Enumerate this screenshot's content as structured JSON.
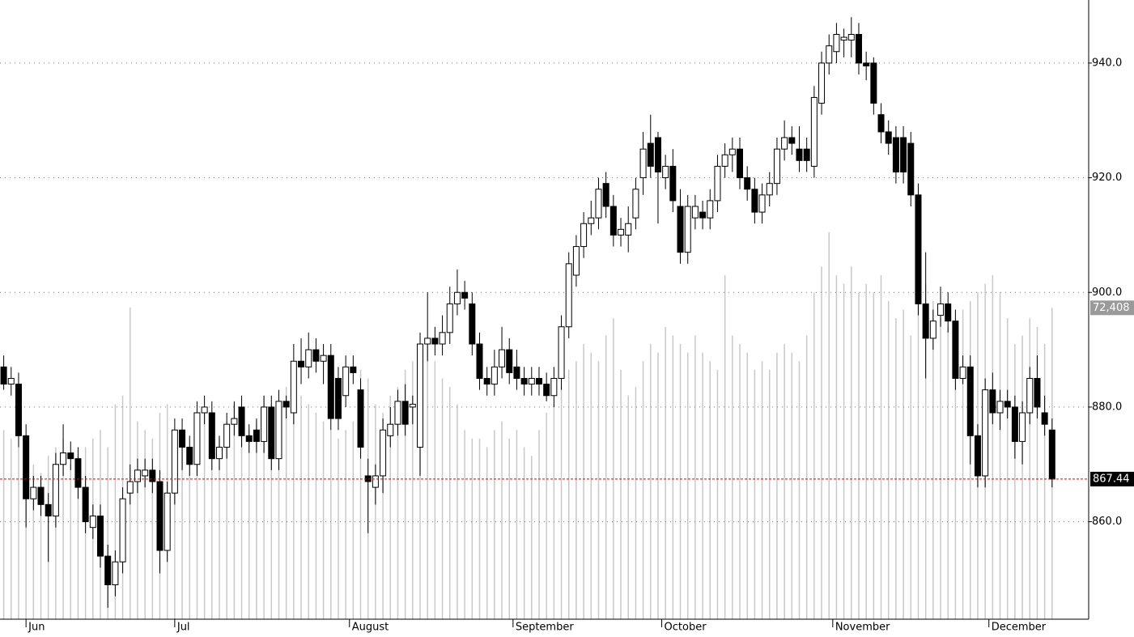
{
  "chart_data": {
    "type": "candlestick",
    "open": [
      887,
      884,
      884,
      875,
      864,
      866,
      863,
      861,
      870,
      872,
      871,
      866,
      859,
      861,
      854,
      849,
      853,
      865,
      867,
      868,
      869,
      867,
      855,
      865,
      876,
      873,
      870,
      879,
      879,
      871,
      873,
      877,
      880,
      875,
      876,
      874,
      880,
      871,
      881,
      879,
      888,
      887,
      890,
      888,
      889,
      885,
      882,
      887,
      883,
      868,
      866,
      868,
      875,
      877,
      881,
      880,
      873,
      891,
      892,
      891,
      893,
      898,
      900,
      898,
      891,
      885,
      884,
      887,
      890,
      887,
      885,
      884,
      885,
      884,
      882,
      885,
      894,
      903,
      908,
      912,
      913,
      919,
      915,
      910,
      910,
      913,
      920,
      926,
      927,
      920,
      922,
      915,
      907,
      913,
      914,
      913,
      916,
      922,
      924,
      925,
      920,
      918,
      914,
      917,
      919,
      925,
      927,
      925,
      925,
      922,
      933,
      940,
      942,
      944,
      944,
      945,
      940,
      940,
      931,
      928,
      927,
      927,
      926,
      917,
      898,
      892,
      896,
      898,
      895,
      885,
      887,
      875,
      868,
      883,
      879,
      881,
      880,
      874,
      879,
      885,
      879,
      876
    ],
    "high": [
      889,
      887,
      886,
      877,
      868,
      868,
      865,
      872,
      877,
      874,
      873,
      868,
      863,
      863,
      856,
      855,
      866,
      870,
      871,
      871,
      871,
      869,
      867,
      878,
      878,
      875,
      881,
      882,
      881,
      875,
      879,
      881,
      882,
      877,
      878,
      882,
      882,
      883,
      882,
      891,
      892,
      893,
      892,
      891,
      891,
      887,
      889,
      889,
      885,
      871,
      870,
      878,
      880,
      883,
      884,
      882,
      893,
      900,
      894,
      896,
      901,
      904,
      902,
      900,
      893,
      887,
      890,
      894,
      892,
      890,
      887,
      887,
      887,
      886,
      887,
      896,
      907,
      910,
      914,
      916,
      920,
      921,
      917,
      913,
      915,
      920,
      928,
      931,
      928,
      924,
      925,
      918,
      917,
      917,
      916,
      918,
      924,
      926,
      927,
      927,
      922,
      920,
      919,
      921,
      927,
      930,
      929,
      929,
      927,
      936,
      942,
      945,
      947,
      946,
      948,
      947,
      942,
      941,
      933,
      930,
      929,
      929,
      928,
      919,
      907,
      897,
      901,
      900,
      897,
      889,
      889,
      877,
      885,
      886,
      883,
      883,
      882,
      881,
      887,
      889,
      882,
      878
    ],
    "low": [
      883,
      882,
      873,
      859,
      862,
      861,
      853,
      859,
      868,
      869,
      864,
      858,
      857,
      852,
      845,
      847,
      851,
      863,
      865,
      866,
      865,
      851,
      853,
      863,
      869,
      868,
      868,
      877,
      869,
      869,
      871,
      875,
      873,
      872,
      872,
      872,
      869,
      869,
      878,
      877,
      884,
      885,
      886,
      884,
      876,
      876,
      880,
      884,
      871,
      858,
      863,
      865,
      873,
      875,
      875,
      877,
      868,
      888,
      889,
      889,
      891,
      896,
      897,
      889,
      883,
      882,
      882,
      885,
      884,
      883,
      882,
      882,
      882,
      881,
      880,
      883,
      892,
      901,
      906,
      910,
      911,
      913,
      908,
      908,
      907,
      911,
      917,
      920,
      912,
      918,
      914,
      905,
      905,
      911,
      911,
      911,
      914,
      920,
      921,
      918,
      916,
      912,
      912,
      915,
      917,
      923,
      924,
      921,
      921,
      920,
      931,
      938,
      940,
      941,
      941,
      938,
      937,
      931,
      926,
      924,
      919,
      919,
      915,
      896,
      885,
      890,
      894,
      893,
      883,
      884,
      870,
      866,
      866,
      877,
      876,
      878,
      871,
      870,
      877,
      878,
      875,
      866
    ],
    "close": [
      884,
      885,
      875,
      864,
      866,
      863,
      861,
      870,
      872,
      871,
      866,
      860,
      861,
      854,
      849,
      853,
      864,
      867,
      869,
      869,
      867,
      855,
      865,
      876,
      873,
      870,
      879,
      880,
      871,
      873,
      877,
      878,
      875,
      874,
      874,
      880,
      871,
      881,
      880,
      888,
      887,
      890,
      888,
      889,
      878,
      878,
      887,
      886,
      873,
      867,
      868,
      876,
      877,
      881,
      877,
      880.5,
      891,
      892,
      891,
      893,
      898,
      900,
      899,
      891,
      885,
      884,
      887,
      890,
      886,
      885,
      884,
      885,
      884,
      882,
      885,
      894,
      905,
      908,
      912,
      913,
      918,
      915,
      910,
      911,
      912,
      918,
      925,
      922,
      921,
      922,
      916,
      907,
      915,
      915,
      913,
      916,
      922,
      924,
      925,
      920,
      918,
      914,
      917,
      919,
      925,
      927,
      926,
      923,
      923,
      934,
      940,
      943,
      945,
      944.5,
      945,
      940,
      939.5,
      933,
      928,
      926,
      921,
      921,
      917,
      898,
      892,
      895,
      898,
      895,
      885,
      887,
      875,
      868,
      883,
      879,
      881,
      880,
      874,
      879,
      885,
      880,
      877,
      867.44
    ],
    "volume": [
      44000,
      42000,
      40000,
      38000,
      36000,
      34000,
      38000,
      40000,
      42000,
      36000,
      38000,
      40000,
      42000,
      44000,
      40000,
      50000,
      52000,
      72500,
      46000,
      44000,
      42000,
      48000,
      50000,
      44000,
      42000,
      40000,
      46000,
      48000,
      44000,
      42000,
      46000,
      50000,
      48000,
      44000,
      46000,
      52000,
      50000,
      48000,
      54000,
      56000,
      52000,
      50000,
      48000,
      46000,
      44000,
      42000,
      44000,
      46000,
      58000,
      56000,
      50000,
      48000,
      52000,
      54000,
      58000,
      60000,
      62000,
      64000,
      60000,
      56000,
      54000,
      50000,
      44000,
      42000,
      42000,
      40000,
      44000,
      46000,
      42000,
      44000,
      40000,
      38000,
      44000,
      48000,
      50000,
      54000,
      58000,
      60000,
      64000,
      62000,
      60000,
      66000,
      70000,
      58000,
      52000,
      54000,
      60000,
      64000,
      62000,
      68000,
      66000,
      64000,
      62000,
      66000,
      62000,
      60000,
      58000,
      80000,
      66000,
      64000,
      62000,
      58000,
      60000,
      58000,
      62000,
      64000,
      62000,
      60000,
      66000,
      76000,
      82000,
      90000,
      80000,
      78000,
      82000,
      76000,
      78000,
      76000,
      80000,
      74000,
      70000,
      72000,
      66000,
      76000,
      78000,
      74000,
      70000,
      68000,
      70000,
      72000,
      74000,
      76000,
      78000,
      80000,
      76000,
      70000,
      64000,
      66000,
      70000,
      68000,
      64000,
      72408
    ],
    "last_volume_label": "72,408",
    "xlim": [
      -0.5,
      142
    ],
    "xticks": [
      {
        "value": 3,
        "label": "Jun"
      },
      {
        "value": 23,
        "label": "Jul"
      },
      {
        "value": 46.5,
        "label": "August"
      },
      {
        "value": 68.5,
        "label": "September"
      },
      {
        "value": 88.5,
        "label": "October"
      },
      {
        "value": 111.5,
        "label": "November"
      },
      {
        "value": 132.5,
        "label": "December"
      }
    ],
    "ylim": [
      843,
      951
    ],
    "yticks": [
      {
        "value": 860,
        "label": "860.0"
      },
      {
        "value": 880,
        "label": "880.0"
      },
      {
        "value": 900,
        "label": "900.0"
      },
      {
        "value": 920,
        "label": "920.0"
      },
      {
        "value": 940,
        "label": "940.0"
      }
    ],
    "y2lim": [
      0,
      144000
    ],
    "grid": true,
    "up_color": "#ffffff",
    "down_color": "#000000",
    "volume_color": "#c8c8c8",
    "last_price_color": "#e00000"
  }
}
